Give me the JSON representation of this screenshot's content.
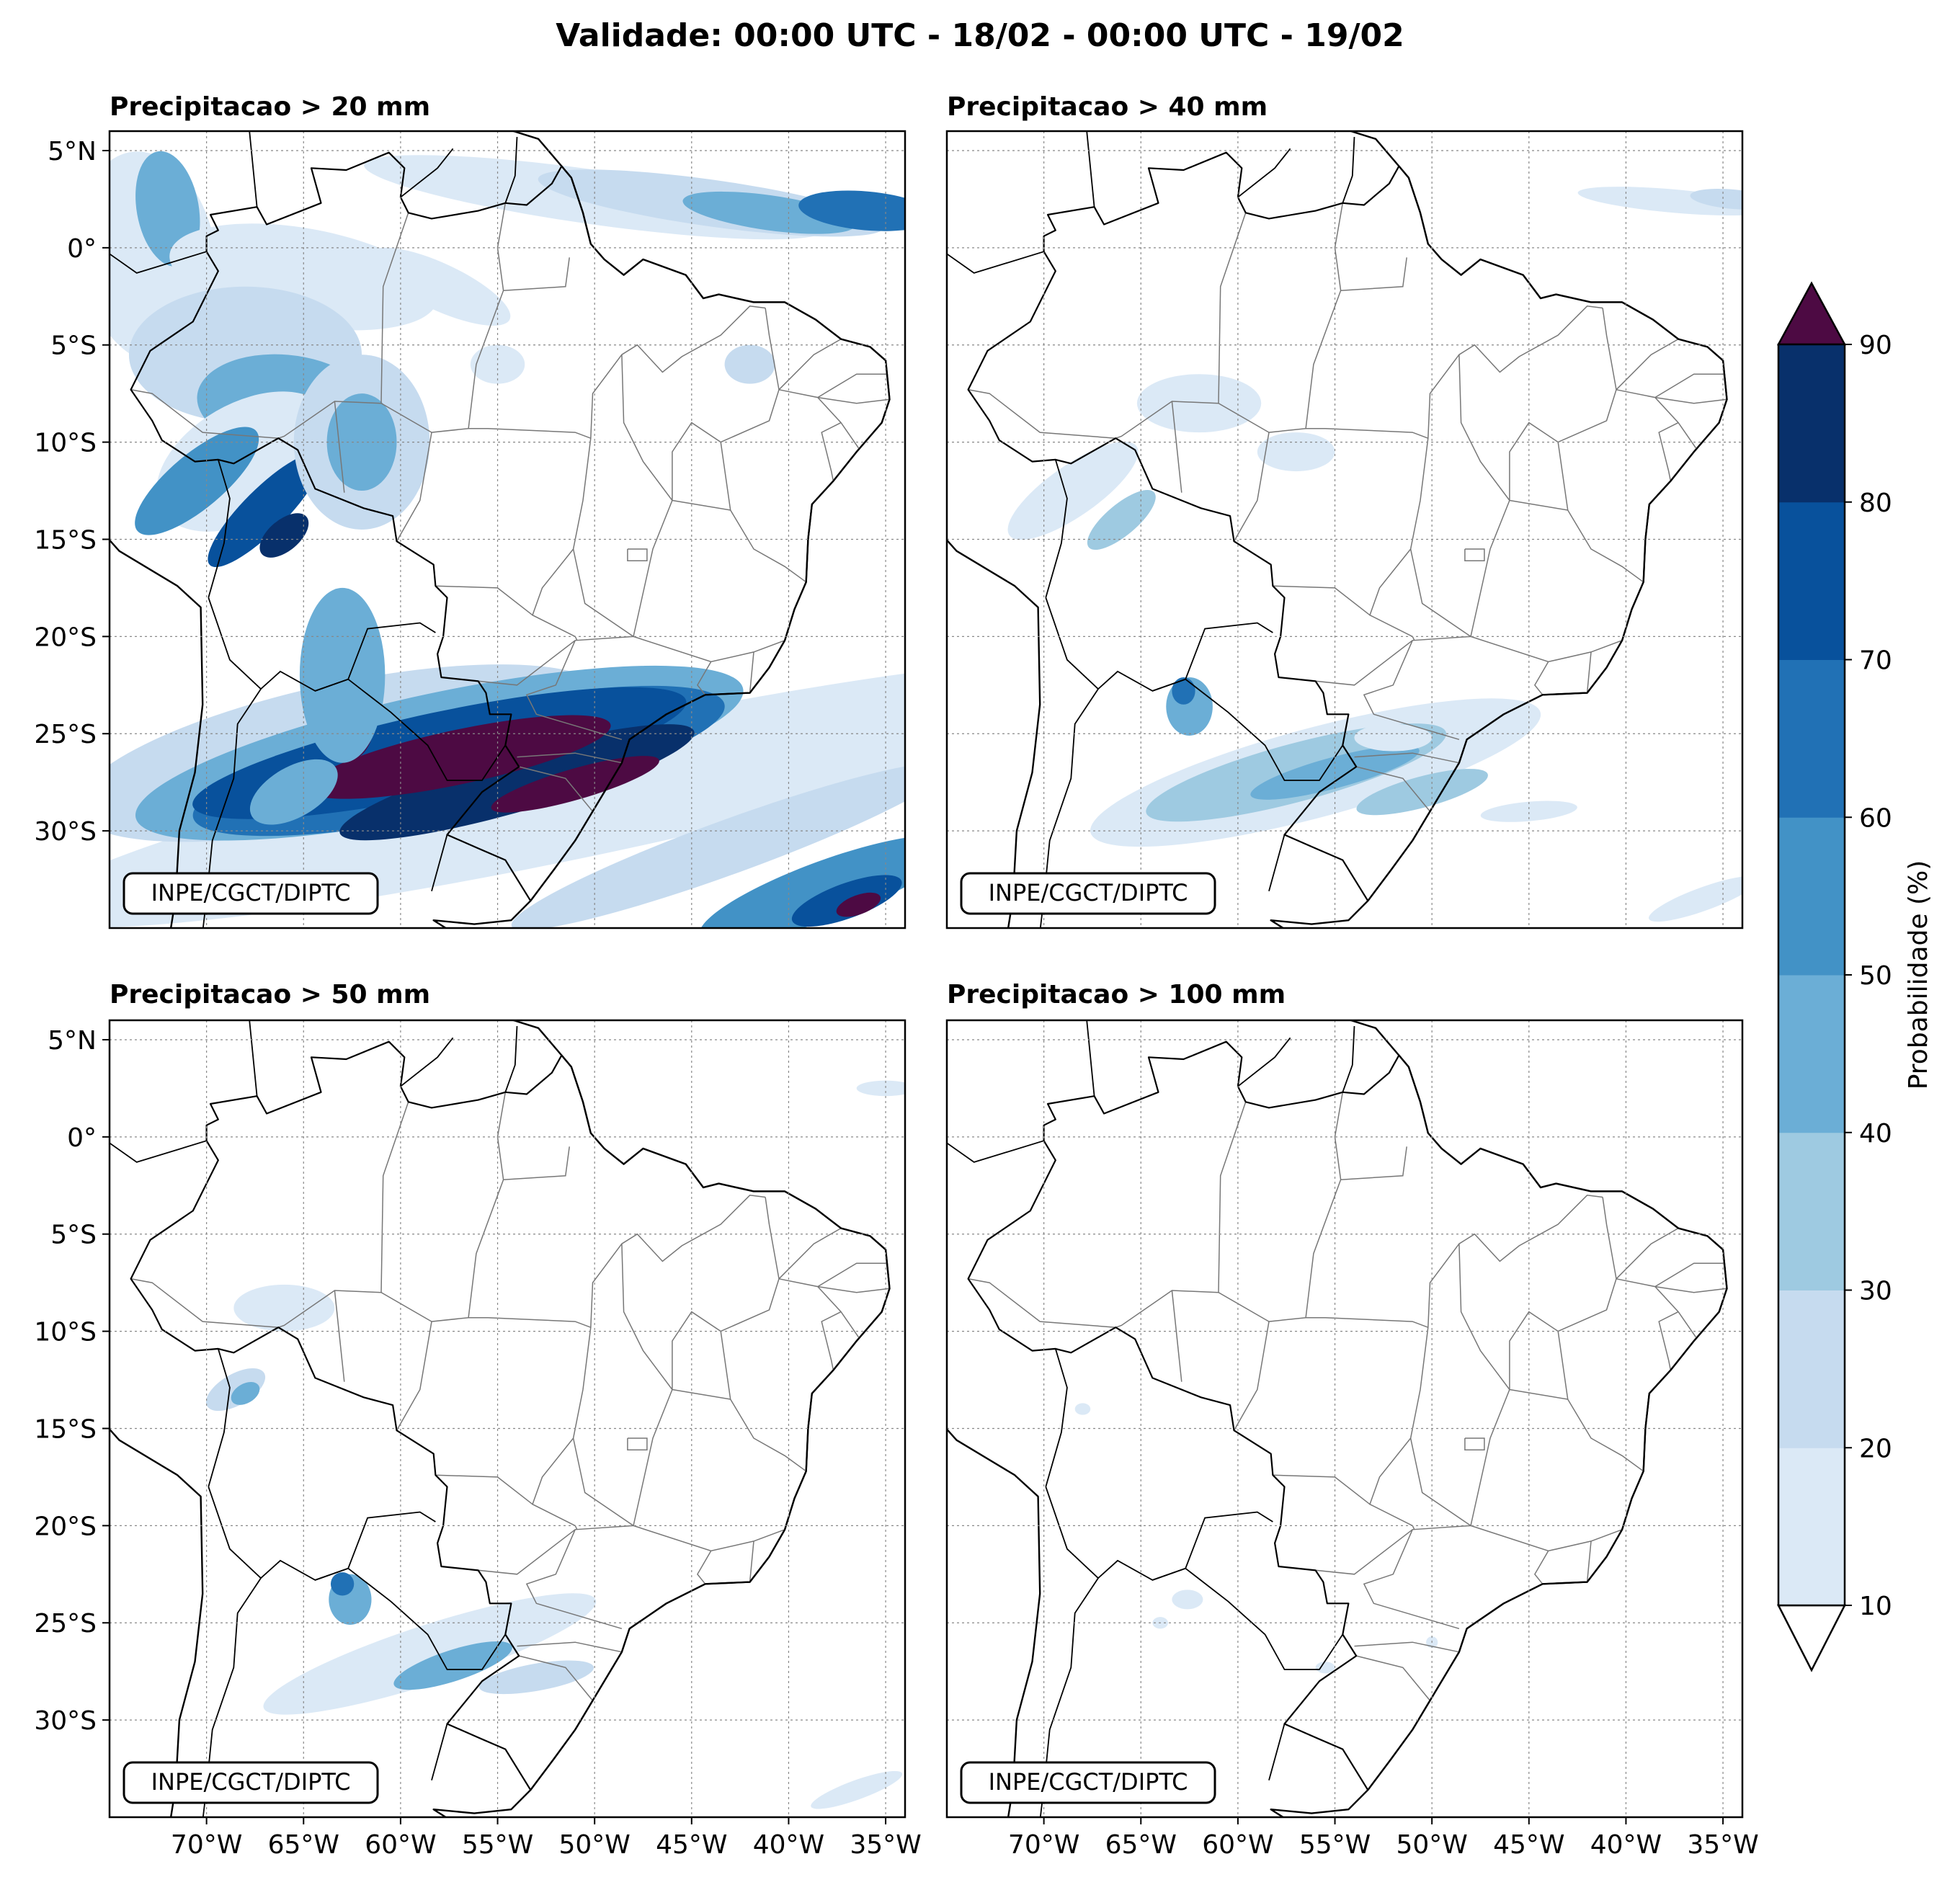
{
  "title": "Validade: 00:00 UTC - 18/02 - 00:00 UTC - 19/02",
  "panels": [
    {
      "title": "Precipitacao > 20 mm",
      "credit": "INPE/CGCT/DIPTC"
    },
    {
      "title": "Precipitacao > 40 mm",
      "credit": "INPE/CGCT/DIPTC"
    },
    {
      "title": "Precipitacao > 50 mm",
      "credit": "INPE/CGCT/DIPTC"
    },
    {
      "title": "Precipitacao > 100 mm",
      "credit": "INPE/CGCT/DIPTC"
    }
  ],
  "lat_ticks": [
    "5°N",
    "0°",
    "5°S",
    "10°S",
    "15°S",
    "20°S",
    "25°S",
    "30°S"
  ],
  "lon_ticks": [
    "70°W",
    "65°W",
    "60°W",
    "55°W",
    "50°W",
    "45°W",
    "40°W",
    "35°W"
  ],
  "colorbar": {
    "label": "Probabilidade (%)",
    "ticks": [
      "10",
      "20",
      "30",
      "40",
      "50",
      "60",
      "70",
      "80",
      "90"
    ],
    "colors": [
      "#dbe9f6",
      "#c6dbef",
      "#9ecae1",
      "#6baed6",
      "#4292c6",
      "#2171b5",
      "#08519c",
      "#08306b"
    ],
    "over_color": "#4d0a43",
    "under_color": "#ffffff"
  },
  "map": {
    "lon_range": [
      -75,
      -34
    ],
    "lat_range": [
      -35,
      6
    ],
    "gridlines": "dotted",
    "coast_color": "#000000",
    "border_color": "#777777"
  }
}
